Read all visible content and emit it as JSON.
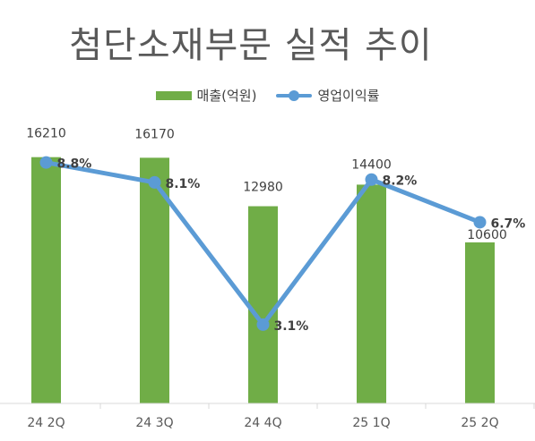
{
  "chart_data": {
    "type": "bar",
    "title": "첨단소재부문 실적 추이",
    "categories": [
      "24 2Q",
      "24 3Q",
      "24 4Q",
      "25 1Q",
      "25 2Q"
    ],
    "series": [
      {
        "name": "매출(억원)",
        "type": "bar",
        "axis": "left",
        "color": "#70ad47",
        "values": [
          16210,
          16170,
          12980,
          14400,
          10600
        ]
      },
      {
        "name": "영업이익률",
        "type": "line",
        "axis": "right",
        "color": "#5b9bd5",
        "values": [
          8.8,
          8.1,
          3.1,
          8.2,
          6.7
        ],
        "labels": [
          "8.8%",
          "8.1%",
          "3.1%",
          "8.2%",
          "6.7%"
        ]
      }
    ],
    "legend": "top-center",
    "grid": false
  }
}
